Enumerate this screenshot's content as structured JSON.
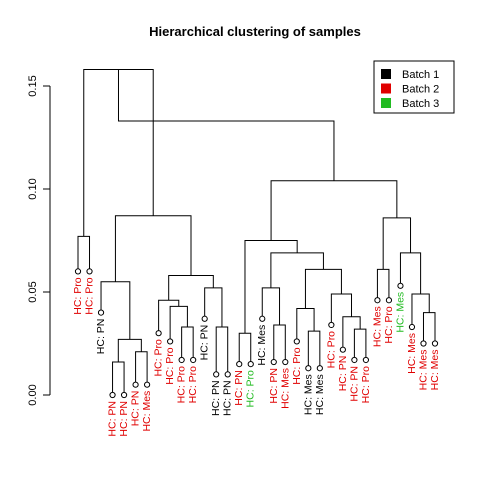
{
  "chart_data": {
    "type": "dendrogram",
    "title": "Hierarchical clustering of samples",
    "xlabel": "",
    "ylabel": "",
    "ylim": [
      0,
      0.16
    ],
    "yticks": [
      0.0,
      0.05,
      0.1,
      0.15
    ],
    "ytick_labels": [
      "0.00",
      "0.05",
      "0.10",
      "0.15"
    ],
    "grid": false,
    "legend_position": "top-right",
    "batch_colors": {
      "Batch 1": "#000000",
      "Batch 2": "#e00000",
      "Batch 3": "#22bb22"
    },
    "legend": [
      {
        "label": "Batch 1",
        "color": "#000000"
      },
      {
        "label": "Batch 2",
        "color": "#e00000"
      },
      {
        "label": "Batch 3",
        "color": "#22bb22"
      }
    ],
    "leaves": [
      {
        "label": "HC: Pro",
        "batch": "Batch 2",
        "height": 0.06
      },
      {
        "label": "HC: Pro",
        "batch": "Batch 2",
        "height": 0.06
      },
      {
        "label": "HC: PN",
        "batch": "Batch 1",
        "height": 0.04
      },
      {
        "label": "HC: PN",
        "batch": "Batch 2",
        "height": 0.0
      },
      {
        "label": "HC: PN",
        "batch": "Batch 2",
        "height": 0.0
      },
      {
        "label": "HC: PN",
        "batch": "Batch 2",
        "height": 0.005
      },
      {
        "label": "HC: Mes",
        "batch": "Batch 2",
        "height": 0.005
      },
      {
        "label": "HC: Pro",
        "batch": "Batch 2",
        "height": 0.03
      },
      {
        "label": "HC: Pro",
        "batch": "Batch 2",
        "height": 0.026
      },
      {
        "label": "HC: Pro",
        "batch": "Batch 2",
        "height": 0.017
      },
      {
        "label": "HC: Pro",
        "batch": "Batch 2",
        "height": 0.017
      },
      {
        "label": "HC: PN",
        "batch": "Batch 1",
        "height": 0.037
      },
      {
        "label": "HC: PN",
        "batch": "Batch 1",
        "height": 0.01
      },
      {
        "label": "HC: PN",
        "batch": "Batch 1",
        "height": 0.01
      },
      {
        "label": "HC: PN",
        "batch": "Batch 2",
        "height": 0.015
      },
      {
        "label": "HC: Pro",
        "batch": "Batch 3",
        "height": 0.015
      },
      {
        "label": "HC: Mes",
        "batch": "Batch 1",
        "height": 0.037
      },
      {
        "label": "HC: PN",
        "batch": "Batch 2",
        "height": 0.016
      },
      {
        "label": "HC: Mes",
        "batch": "Batch 2",
        "height": 0.016
      },
      {
        "label": "HC: Pro",
        "batch": "Batch 2",
        "height": 0.026
      },
      {
        "label": "HC: Mes",
        "batch": "Batch 1",
        "height": 0.013
      },
      {
        "label": "HC: Mes",
        "batch": "Batch 1",
        "height": 0.013
      },
      {
        "label": "HC: Pro",
        "batch": "Batch 2",
        "height": 0.034
      },
      {
        "label": "HC: PN",
        "batch": "Batch 2",
        "height": 0.022
      },
      {
        "label": "HC: PN",
        "batch": "Batch 2",
        "height": 0.017
      },
      {
        "label": "HC: Pro",
        "batch": "Batch 2",
        "height": 0.017
      },
      {
        "label": "HC: Mes",
        "batch": "Batch 2",
        "height": 0.046
      },
      {
        "label": "HC: Pro",
        "batch": "Batch 2",
        "height": 0.046
      },
      {
        "label": "HC: Mes",
        "batch": "Batch 3",
        "height": 0.053
      },
      {
        "label": "HC: Mes",
        "batch": "Batch 2",
        "height": 0.033
      },
      {
        "label": "HC: Mes",
        "batch": "Batch 2",
        "height": 0.025
      },
      {
        "label": "HC: Mes",
        "batch": "Batch 2",
        "height": 0.025
      }
    ],
    "merges": [
      {
        "children": [
          0,
          1
        ],
        "height": 0.077
      },
      {
        "children": [
          3,
          4
        ],
        "height": 0.016
      },
      {
        "children": [
          5,
          6
        ],
        "height": 0.021
      },
      {
        "children": [
          33,
          34
        ],
        "height": 0.027
      },
      {
        "children": [
          2,
          35
        ],
        "height": 0.055
      },
      {
        "children": [
          9,
          10
        ],
        "height": 0.033
      },
      {
        "children": [
          8,
          37
        ],
        "height": 0.043
      },
      {
        "children": [
          7,
          38
        ],
        "height": 0.046
      },
      {
        "children": [
          12,
          13
        ],
        "height": 0.033
      },
      {
        "children": [
          11,
          40
        ],
        "height": 0.052
      },
      {
        "children": [
          39,
          41
        ],
        "height": 0.058
      },
      {
        "children": [
          36,
          42
        ],
        "height": 0.087
      },
      {
        "children": [
          32,
          43
        ],
        "height": 0.158
      },
      {
        "children": [
          14,
          15
        ],
        "height": 0.03
      },
      {
        "children": [
          17,
          18
        ],
        "height": 0.034
      },
      {
        "children": [
          16,
          46
        ],
        "height": 0.052
      },
      {
        "children": [
          20,
          21
        ],
        "height": 0.031
      },
      {
        "children": [
          19,
          48
        ],
        "height": 0.042
      },
      {
        "children": [
          24,
          25
        ],
        "height": 0.032
      },
      {
        "children": [
          23,
          50
        ],
        "height": 0.038
      },
      {
        "children": [
          22,
          51
        ],
        "height": 0.049
      },
      {
        "children": [
          49,
          52
        ],
        "height": 0.061
      },
      {
        "children": [
          47,
          53
        ],
        "height": 0.069
      },
      {
        "children": [
          45,
          54
        ],
        "height": 0.075
      },
      {
        "children": [
          26,
          27
        ],
        "height": 0.061
      },
      {
        "children": [
          30,
          31
        ],
        "height": 0.04
      },
      {
        "children": [
          29,
          57
        ],
        "height": 0.049
      },
      {
        "children": [
          28,
          58
        ],
        "height": 0.069
      },
      {
        "children": [
          56,
          59
        ],
        "height": 0.086
      },
      {
        "children": [
          55,
          60
        ],
        "height": 0.104
      },
      {
        "children": [
          44,
          61
        ],
        "height": 0.133
      }
    ]
  }
}
